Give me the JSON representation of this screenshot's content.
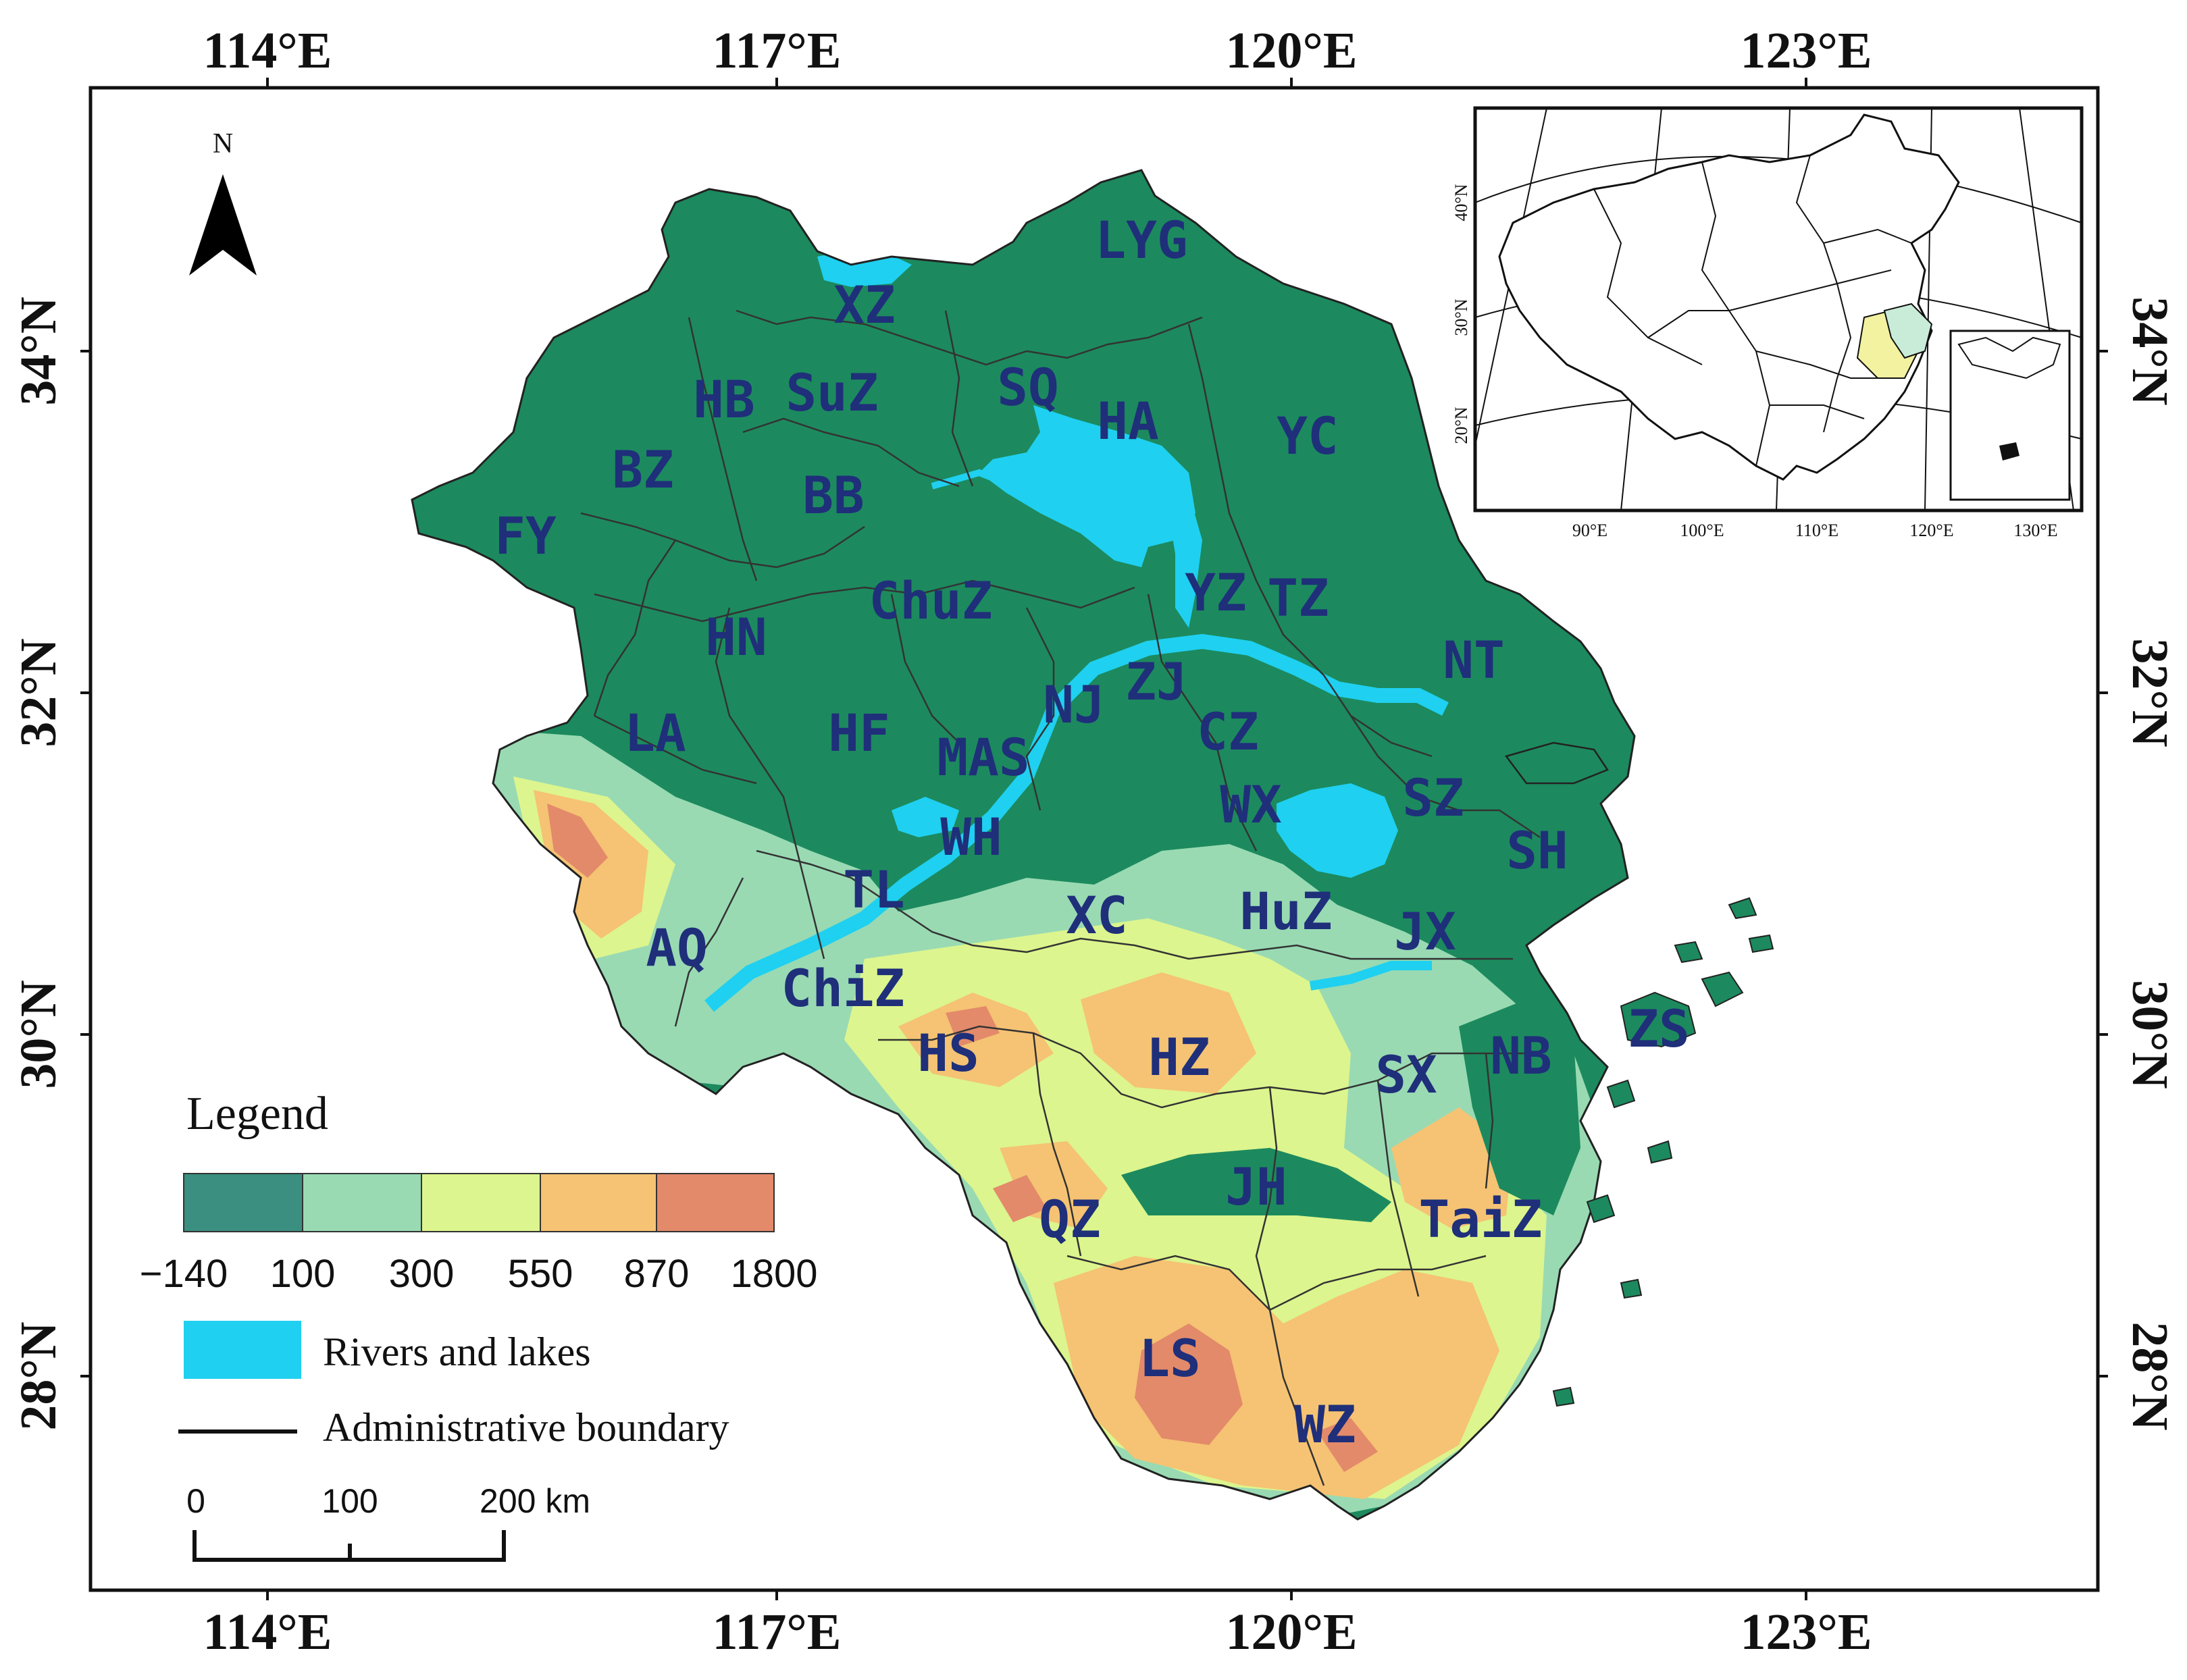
{
  "map": {
    "lon_labels": [
      "114°E",
      "117°E",
      "120°E",
      "123°E"
    ],
    "lat_labels": [
      "34°N",
      "32°N",
      "30°N",
      "28°N"
    ],
    "north_label": "N"
  },
  "cities": [
    {
      "code": "LYG"
    },
    {
      "code": "XZ"
    },
    {
      "code": "HB"
    },
    {
      "code": "SuZ"
    },
    {
      "code": "SQ"
    },
    {
      "code": "HA"
    },
    {
      "code": "YC"
    },
    {
      "code": "BZ"
    },
    {
      "code": "BB"
    },
    {
      "code": "FY"
    },
    {
      "code": "ChuZ"
    },
    {
      "code": "YZ"
    },
    {
      "code": "TZ"
    },
    {
      "code": "HN"
    },
    {
      "code": "NT"
    },
    {
      "code": "ZJ"
    },
    {
      "code": "NJ"
    },
    {
      "code": "LA"
    },
    {
      "code": "HF"
    },
    {
      "code": "MAS"
    },
    {
      "code": "CZ"
    },
    {
      "code": "SZ"
    },
    {
      "code": "WX"
    },
    {
      "code": "WH"
    },
    {
      "code": "SH"
    },
    {
      "code": "TL"
    },
    {
      "code": "XC"
    },
    {
      "code": "HuZ"
    },
    {
      "code": "JX"
    },
    {
      "code": "AQ"
    },
    {
      "code": "ChiZ"
    },
    {
      "code": "ZS"
    },
    {
      "code": "HS"
    },
    {
      "code": "HZ"
    },
    {
      "code": "SX"
    },
    {
      "code": "NB"
    },
    {
      "code": "JH"
    },
    {
      "code": "QZ"
    },
    {
      "code": "TaiZ"
    },
    {
      "code": "LS"
    },
    {
      "code": "WZ"
    }
  ],
  "legend": {
    "title": "Legend",
    "elevation_breaks": [
      "−140",
      "100",
      "300",
      "550",
      "870",
      "1800"
    ],
    "elevation_colors": [
      "#3a8f80",
      "#99dab3",
      "#dcf58e",
      "#f5c373",
      "#e38a6a"
    ],
    "rivers_label": "Rivers and lakes",
    "rivers_color": "#1fd0f0",
    "boundary_label": "Administrative boundary",
    "scale_labels": [
      "0",
      "100",
      "200 km"
    ]
  },
  "inset": {
    "lat_labels": [
      "40°N",
      "30°N",
      "20°N"
    ],
    "lon_labels": [
      "90°E",
      "100°E",
      "110°E",
      "120°E",
      "130°E"
    ]
  },
  "colors": {
    "plain": "#1c8a5e",
    "low_hill": "#99dab3",
    "hill": "#dcf58e",
    "mountain": "#f5c373",
    "high": "#e38a6a",
    "water": "#1fd0f0",
    "label": "#1f2f7a"
  }
}
